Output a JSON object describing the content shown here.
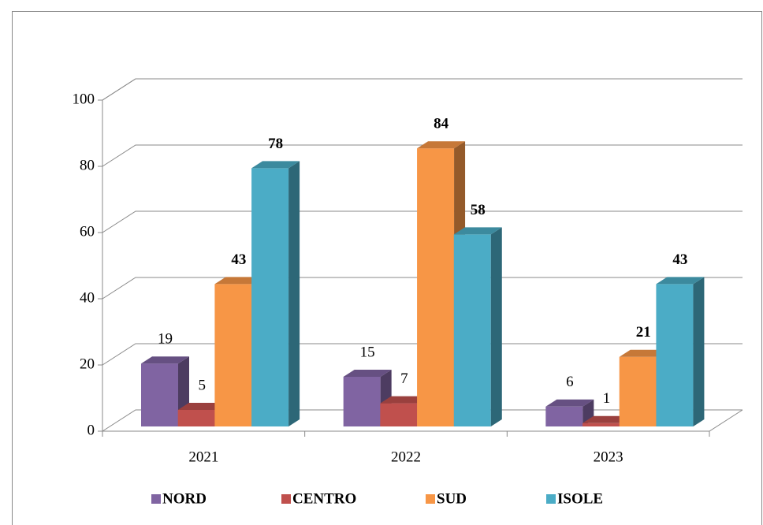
{
  "chart_data": {
    "type": "bar3d",
    "categories": [
      "2021",
      "2022",
      "2023"
    ],
    "series": [
      {
        "name": "NORD",
        "color": "#8064a2",
        "values": [
          19,
          15,
          6
        ]
      },
      {
        "name": "CENTRO",
        "color": "#c0504d",
        "values": [
          5,
          7,
          1
        ]
      },
      {
        "name": "SUD",
        "color": "#f79646",
        "values": [
          43,
          84,
          21
        ]
      },
      {
        "name": "ISOLE",
        "color": "#4bacc6",
        "values": [
          78,
          58,
          43
        ]
      }
    ],
    "ylim": [
      0,
      100
    ],
    "yticks": [
      0,
      20,
      40,
      60,
      80,
      100
    ],
    "grid": true,
    "legend": "bottom"
  }
}
